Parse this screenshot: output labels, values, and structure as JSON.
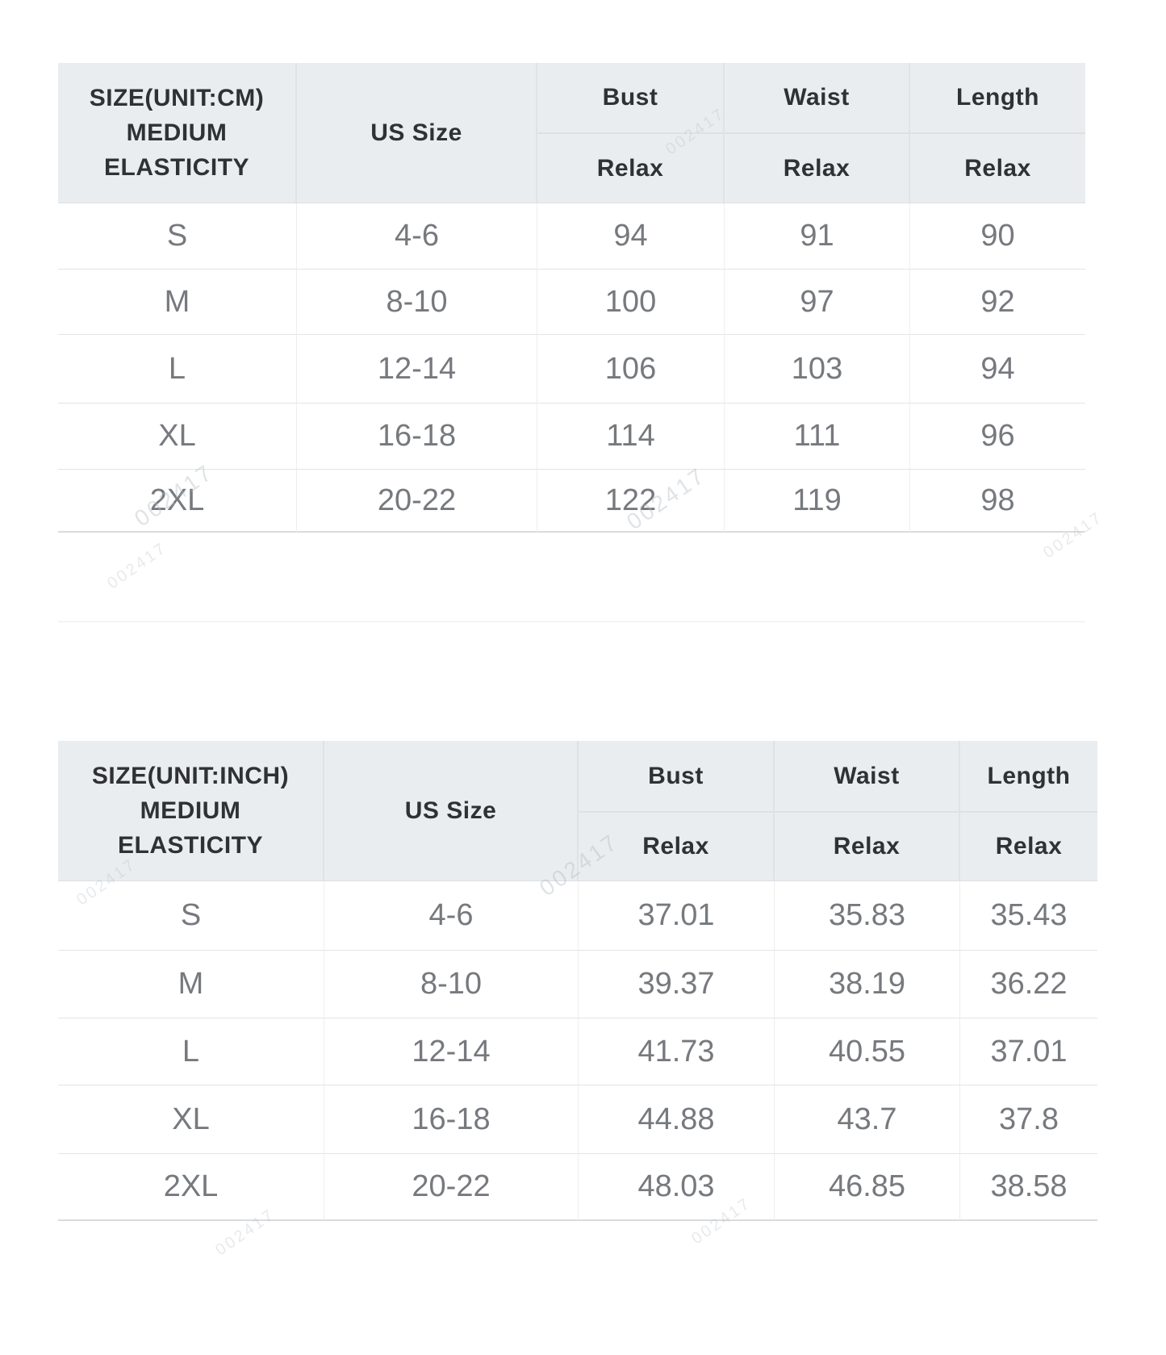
{
  "page": {
    "background": "#ffffff"
  },
  "watermark": {
    "text": "002417",
    "color": "#b4bac1"
  },
  "colors": {
    "header_bg": "#eaedf0",
    "header_text": "#2e3135",
    "data_text": "#76797d",
    "row_line": "#e4e4e4",
    "header_line": "#dfe2e6"
  },
  "cm_table": {
    "title_line1": "SIZE(UNIT:CM)",
    "title_line2": "MEDIUM",
    "title_line3": "ELASTICITY",
    "us_size_label": "US Size",
    "columns": {
      "bust": "Bust",
      "waist": "Waist",
      "length": "Length"
    },
    "relax_label": "Relax",
    "rows": [
      {
        "size": "S",
        "us": "4-6",
        "bust": "94",
        "waist": "91",
        "length": "90"
      },
      {
        "size": "M",
        "us": "8-10",
        "bust": "100",
        "waist": "97",
        "length": "92"
      },
      {
        "size": "L",
        "us": "12-14",
        "bust": "106",
        "waist": "103",
        "length": "94"
      },
      {
        "size": "XL",
        "us": "16-18",
        "bust": "114",
        "waist": "111",
        "length": "96"
      },
      {
        "size": "2XL",
        "us": "20-22",
        "bust": "122",
        "waist": "119",
        "length": "98"
      }
    ]
  },
  "inch_table": {
    "title_line1": "SIZE(UNIT:INCH)",
    "title_line2": "MEDIUM",
    "title_line3": "ELASTICITY",
    "us_size_label": "US Size",
    "columns": {
      "bust": "Bust",
      "waist": "Waist",
      "length": "Length"
    },
    "relax_label": "Relax",
    "rows": [
      {
        "size": "S",
        "us": "4-6",
        "bust": "37.01",
        "waist": "35.83",
        "length": "35.43"
      },
      {
        "size": "M",
        "us": "8-10",
        "bust": "39.37",
        "waist": "38.19",
        "length": "36.22"
      },
      {
        "size": "L",
        "us": "12-14",
        "bust": "41.73",
        "waist": "40.55",
        "length": "37.01"
      },
      {
        "size": "XL",
        "us": "16-18",
        "bust": "44.88",
        "waist": "43.7",
        "length": "37.8"
      },
      {
        "size": "2XL",
        "us": "20-22",
        "bust": "48.03",
        "waist": "46.85",
        "length": "38.58"
      }
    ]
  },
  "chart_data": [
    {
      "type": "table",
      "title": "SIZE(UNIT:CM) MEDIUM ELASTICITY",
      "columns": [
        "Size",
        "US Size",
        "Bust Relax",
        "Waist Relax",
        "Length Relax"
      ],
      "rows": [
        [
          "S",
          "4-6",
          94,
          91,
          90
        ],
        [
          "M",
          "8-10",
          100,
          97,
          92
        ],
        [
          "L",
          "12-14",
          106,
          103,
          94
        ],
        [
          "XL",
          "16-18",
          114,
          111,
          96
        ],
        [
          "2XL",
          "20-22",
          122,
          119,
          98
        ]
      ]
    },
    {
      "type": "table",
      "title": "SIZE(UNIT:INCH) MEDIUM ELASTICITY",
      "columns": [
        "Size",
        "US Size",
        "Bust Relax",
        "Waist Relax",
        "Length Relax"
      ],
      "rows": [
        [
          "S",
          "4-6",
          37.01,
          35.83,
          35.43
        ],
        [
          "M",
          "8-10",
          39.37,
          38.19,
          36.22
        ],
        [
          "L",
          "12-14",
          41.73,
          40.55,
          37.01
        ],
        [
          "XL",
          "16-18",
          44.88,
          43.7,
          37.8
        ],
        [
          "2XL",
          "20-22",
          48.03,
          46.85,
          38.58
        ]
      ]
    }
  ]
}
